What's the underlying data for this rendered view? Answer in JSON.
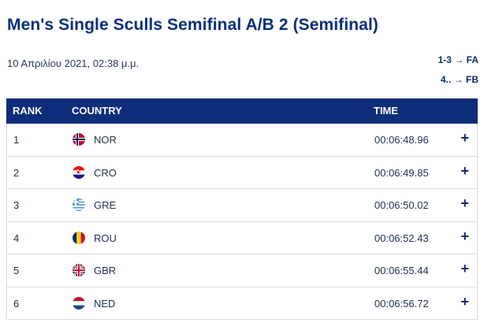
{
  "header": {
    "title": "Men's Single Sculls Semifinal A/B 2 (Semifinal)",
    "date": "10 Απριλίου 2021, 02:38 μ.μ."
  },
  "progression": [
    {
      "range": "1-3",
      "arrow": "→",
      "target": "FA"
    },
    {
      "range": "4..",
      "arrow": "→",
      "target": "FB"
    }
  ],
  "table": {
    "headers": {
      "rank": "RANK",
      "country": "COUNTRY",
      "time": "TIME"
    },
    "rows": [
      {
        "rank": "1",
        "country": "NOR",
        "flag": "norway-flag-icon",
        "time": "00:06:48.96",
        "expand": "+"
      },
      {
        "rank": "2",
        "country": "CRO",
        "flag": "croatia-flag-icon",
        "time": "00:06:49.85",
        "expand": "+"
      },
      {
        "rank": "3",
        "country": "GRE",
        "flag": "greece-flag-icon",
        "time": "00:06:50.02",
        "expand": "+"
      },
      {
        "rank": "4",
        "country": "ROU",
        "flag": "romania-flag-icon",
        "time": "00:06:52.43",
        "expand": "+"
      },
      {
        "rank": "5",
        "country": "GBR",
        "flag": "uk-flag-icon",
        "time": "00:06:55.44",
        "expand": "+"
      },
      {
        "rank": "6",
        "country": "NED",
        "flag": "netherlands-flag-icon",
        "time": "00:06:56.72",
        "expand": "+"
      }
    ]
  },
  "colors": {
    "header_bg": "#0e2d7a",
    "title": "#0a2f7a",
    "row_border": "#d6dbe3"
  }
}
